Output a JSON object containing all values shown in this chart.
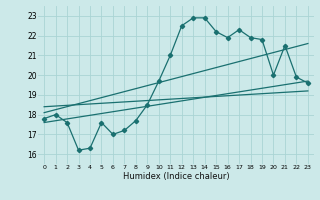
{
  "xlabel": "Humidex (Indice chaleur)",
  "xlim": [
    -0.5,
    23.5
  ],
  "ylim": [
    15.5,
    23.5
  ],
  "yticks": [
    16,
    17,
    18,
    19,
    20,
    21,
    22,
    23
  ],
  "xticks": [
    0,
    1,
    2,
    3,
    4,
    5,
    6,
    7,
    8,
    9,
    10,
    11,
    12,
    13,
    14,
    15,
    16,
    17,
    18,
    19,
    20,
    21,
    22,
    23
  ],
  "xtick_labels": [
    "0",
    "1",
    "2",
    "3",
    "4",
    "5",
    "6",
    "7",
    "8",
    "9",
    "10",
    "11",
    "12",
    "13",
    "14",
    "15",
    "16",
    "17",
    "18",
    "19",
    "20",
    "21",
    "22",
    "23"
  ],
  "bg_color": "#cce9e9",
  "grid_color": "#aad4d4",
  "line_color": "#1a7070",
  "main_line_x": [
    0,
    1,
    2,
    3,
    4,
    5,
    6,
    7,
    8,
    9,
    10,
    11,
    12,
    13,
    14,
    15,
    16,
    17,
    18,
    19,
    20,
    21,
    22,
    23
  ],
  "main_line_y": [
    17.8,
    18.0,
    17.6,
    16.2,
    16.3,
    17.6,
    17.0,
    17.2,
    17.7,
    18.5,
    19.7,
    21.0,
    22.5,
    22.9,
    22.9,
    22.2,
    21.9,
    22.3,
    21.9,
    21.8,
    20.0,
    21.5,
    19.9,
    19.6
  ],
  "trend_line1_x": [
    0,
    23
  ],
  "trend_line1_y": [
    18.1,
    21.6
  ],
  "trend_line2_x": [
    0,
    23
  ],
  "trend_line2_y": [
    18.4,
    19.2
  ],
  "trend_line3_x": [
    0,
    23
  ],
  "trend_line3_y": [
    17.6,
    19.7
  ]
}
